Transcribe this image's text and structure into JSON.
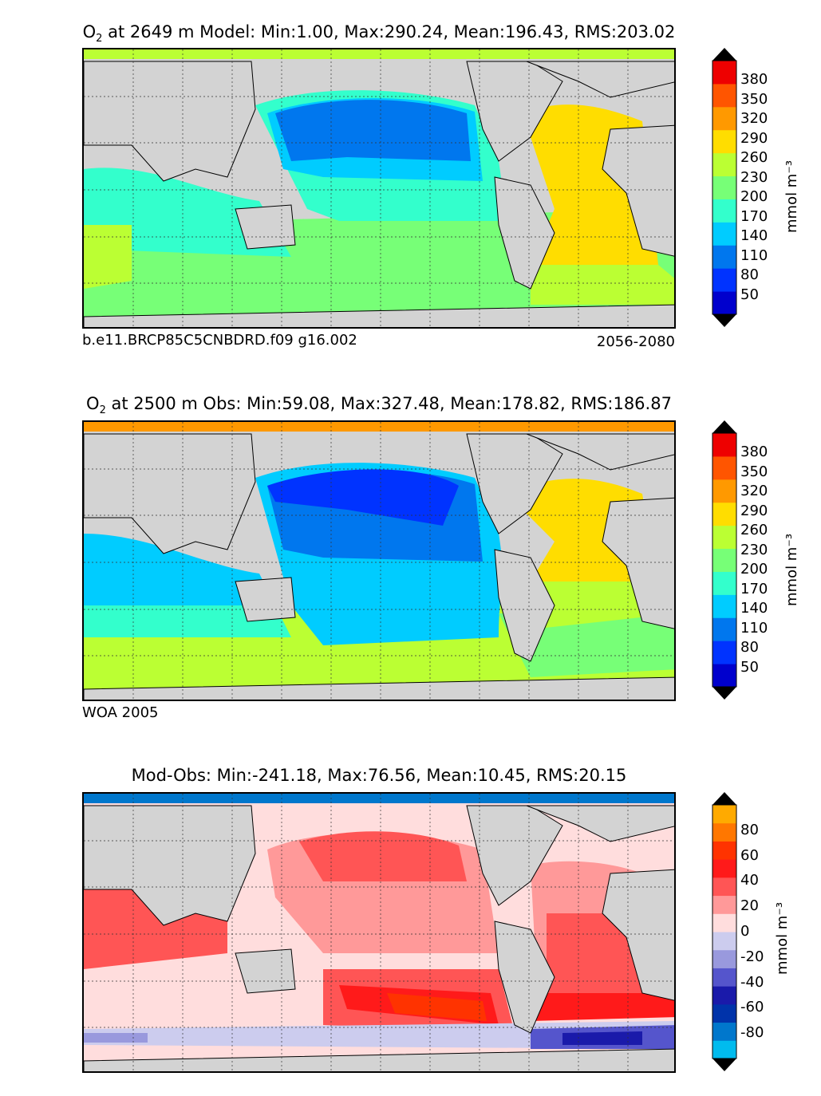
{
  "panels": [
    {
      "title_prefix": "O",
      "title_sub": "2",
      "title_rest": " at 2649 m Model: Min:1.00, Max:290.24, Mean:196.43, RMS:203.02",
      "footer_left": "b.e11.BRCP85C5CNBDRD.f09 g16.002",
      "footer_right": "2056-2080"
    },
    {
      "title_prefix": "O",
      "title_sub": "2",
      "title_rest": " at 2500 m Obs: Min:59.08, Max:327.48, Mean:178.82, RMS:186.87",
      "footer_left": "WOA 2005",
      "footer_right": ""
    },
    {
      "title_prefix": "",
      "title_sub": "",
      "title_rest": "Mod-Obs: Min:-241.18, Max:76.56, Mean:10.45, RMS:20.15",
      "footer_left": "",
      "footer_right": ""
    }
  ],
  "colorbar_o2": {
    "unit": "mmol m⁻³",
    "ticks": [
      "380",
      "350",
      "320",
      "290",
      "260",
      "230",
      "200",
      "170",
      "140",
      "110",
      "80",
      "50"
    ],
    "colors": [
      "#000080",
      "#0000cd",
      "#0033ff",
      "#0077ee",
      "#00ccff",
      "#33ffcc",
      "#77ff77",
      "#bbff33",
      "#ffdd00",
      "#ff9900",
      "#ff5500",
      "#ee0000",
      "#800000"
    ]
  },
  "colorbar_diff": {
    "unit": "mmol m⁻³",
    "ticks": [
      "80",
      "60",
      "40",
      "20",
      "0",
      "-20",
      "-40",
      "-60",
      "-80"
    ],
    "colors": [
      "#00ffff",
      "#00bbee",
      "#0077cc",
      "#0033aa",
      "#1a1aaa",
      "#5555cc",
      "#9999dd",
      "#ccccee",
      "#ffdddd",
      "#ff9999",
      "#ff5555",
      "#ff1a1a",
      "#ff3300",
      "#ff7700",
      "#ffaa00",
      "#ffff00"
    ]
  },
  "chart_data": [
    {
      "type": "heatmap",
      "title": "O2 at 2649 m Model: Min:1.00, Max:290.24, Mean:196.43, RMS:203.02",
      "field": "dissolved oxygen, model",
      "colorbar_range": [
        50,
        380
      ],
      "colorbar_ticks": [
        50,
        80,
        110,
        140,
        170,
        200,
        230,
        260,
        290,
        320,
        350,
        380
      ],
      "units": "mmol m^-3",
      "stats": {
        "min": 1.0,
        "max": 290.24,
        "mean": 196.43,
        "rms": 203.02
      },
      "case": "b.e11.BRCP85C5CNBDRD.f09 g16.002",
      "years": "2056-2080"
    },
    {
      "type": "heatmap",
      "title": "O2 at 2500 m Obs: Min:59.08, Max:327.48, Mean:178.82, RMS:186.87",
      "field": "dissolved oxygen, observations",
      "colorbar_range": [
        50,
        380
      ],
      "colorbar_ticks": [
        50,
        80,
        110,
        140,
        170,
        200,
        230,
        260,
        290,
        320,
        350,
        380
      ],
      "units": "mmol m^-3",
      "stats": {
        "min": 59.08,
        "max": 327.48,
        "mean": 178.82,
        "rms": 186.87
      },
      "source": "WOA 2005"
    },
    {
      "type": "heatmap",
      "title": "Mod-Obs: Min:-241.18, Max:76.56, Mean:10.45, RMS:20.15",
      "field": "model minus observations",
      "colorbar_range": [
        -80,
        80
      ],
      "colorbar_ticks": [
        -80,
        -60,
        -40,
        -20,
        0,
        20,
        40,
        60,
        80
      ],
      "units": "mmol m^-3",
      "stats": {
        "min": -241.18,
        "max": 76.56,
        "mean": 10.45,
        "rms": 20.15
      }
    }
  ]
}
